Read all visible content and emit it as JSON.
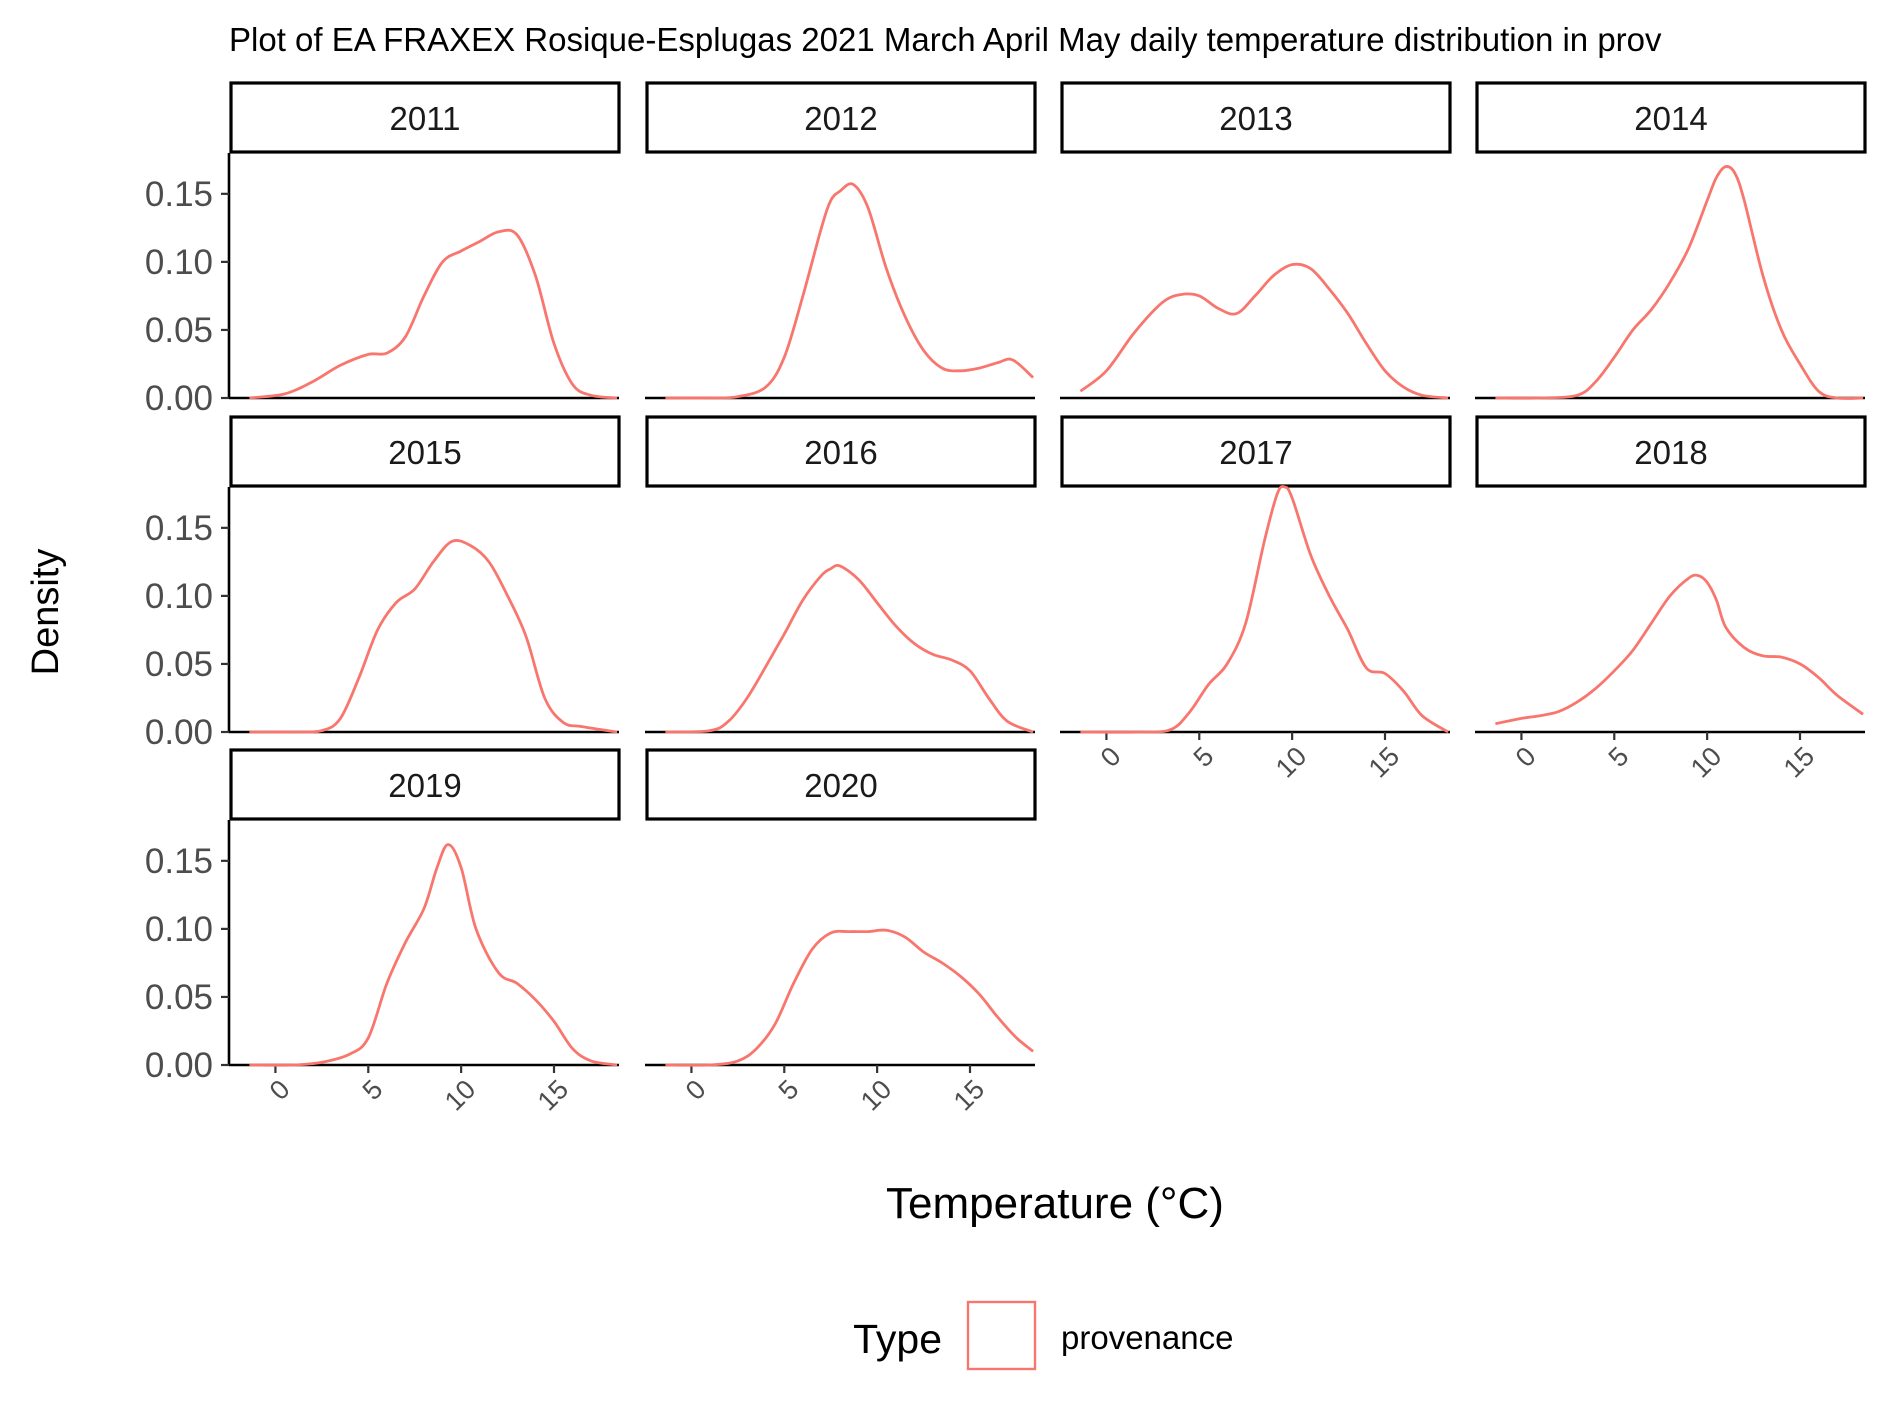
{
  "chart_data": {
    "type": "line",
    "title": "Plot of EA FRAXEX Rosique-Esplugas 2021 March April May daily temperature distribution in prov",
    "xlabel": "Temperature (°C)",
    "ylabel": "Density",
    "xlim": [
      -2.5,
      18.5
    ],
    "ylim": [
      0,
      0.18
    ],
    "x_ticks": [
      0,
      5,
      10,
      15
    ],
    "y_ticks": [
      0.0,
      0.05,
      0.1,
      0.15
    ],
    "y_tick_labels": [
      "0.00",
      "0.05",
      "0.10",
      "0.15"
    ],
    "line_color": "#F8766D",
    "legend": {
      "title": "Type",
      "entries": [
        "provenance"
      ],
      "position": "bottom"
    },
    "panels": [
      {
        "label": "2011",
        "x": [
          -1.4,
          0.5,
          2,
          3.5,
          5,
          6,
          7,
          8,
          9,
          10,
          11,
          12,
          13,
          14,
          15,
          16,
          17,
          18.4
        ],
        "y": [
          0.0,
          0.003,
          0.012,
          0.024,
          0.032,
          0.033,
          0.045,
          0.075,
          0.1,
          0.108,
          0.115,
          0.122,
          0.12,
          0.09,
          0.04,
          0.01,
          0.002,
          0.0
        ]
      },
      {
        "label": "2012",
        "x": [
          -1.4,
          1,
          2.5,
          4,
          5,
          6,
          7,
          7.5,
          8,
          8.7,
          9.5,
          10.5,
          11.5,
          12.5,
          13.5,
          14.5,
          15.5,
          16.5,
          17.3,
          18.4
        ],
        "y": [
          0.0,
          0.0,
          0.001,
          0.008,
          0.03,
          0.075,
          0.125,
          0.145,
          0.152,
          0.157,
          0.14,
          0.095,
          0.06,
          0.035,
          0.022,
          0.02,
          0.022,
          0.026,
          0.028,
          0.015
        ]
      },
      {
        "label": "2013",
        "x": [
          -1.4,
          0,
          1.5,
          3,
          4,
          5,
          6,
          7,
          8,
          9,
          10,
          11,
          12,
          13,
          14,
          15,
          16,
          17,
          18.4
        ],
        "y": [
          0.005,
          0.02,
          0.048,
          0.07,
          0.076,
          0.075,
          0.066,
          0.062,
          0.075,
          0.09,
          0.098,
          0.095,
          0.08,
          0.062,
          0.04,
          0.02,
          0.008,
          0.002,
          0.0
        ]
      },
      {
        "label": "2014",
        "x": [
          -1.4,
          1,
          3,
          4,
          5,
          6,
          7,
          8,
          9,
          10,
          10.5,
          11,
          11.5,
          12,
          13,
          14,
          15,
          16,
          17,
          18.4
        ],
        "y": [
          0.0,
          0.0,
          0.002,
          0.012,
          0.03,
          0.05,
          0.065,
          0.085,
          0.11,
          0.145,
          0.162,
          0.17,
          0.165,
          0.145,
          0.09,
          0.05,
          0.025,
          0.005,
          0.0,
          0.0
        ]
      },
      {
        "label": "2015",
        "x": [
          -1.4,
          1,
          2.5,
          3.5,
          4.5,
          5.5,
          6.5,
          7.5,
          8.5,
          9.5,
          10.5,
          11.5,
          12.5,
          13.5,
          14.5,
          15.5,
          16.5,
          18.4
        ],
        "y": [
          0.0,
          0.0,
          0.001,
          0.01,
          0.04,
          0.075,
          0.095,
          0.105,
          0.125,
          0.14,
          0.137,
          0.125,
          0.1,
          0.07,
          0.025,
          0.007,
          0.004,
          0.0
        ]
      },
      {
        "label": "2016",
        "x": [
          -1.4,
          1,
          2,
          3,
          4,
          5,
          6,
          7,
          7.5,
          8,
          9,
          10,
          11,
          12,
          13,
          14,
          15,
          16,
          17,
          18.4
        ],
        "y": [
          0.0,
          0.001,
          0.008,
          0.025,
          0.048,
          0.072,
          0.097,
          0.115,
          0.12,
          0.122,
          0.112,
          0.095,
          0.078,
          0.065,
          0.057,
          0.053,
          0.045,
          0.025,
          0.008,
          0.0
        ]
      },
      {
        "label": "2017",
        "x": [
          -1.4,
          2,
          3.5,
          4.5,
          5.5,
          6.5,
          7.5,
          8.5,
          9.2,
          9.6,
          10,
          11,
          12,
          13,
          14,
          15,
          16,
          17,
          18.4
        ],
        "y": [
          0.0,
          0.0,
          0.002,
          0.015,
          0.035,
          0.05,
          0.08,
          0.14,
          0.175,
          0.18,
          0.172,
          0.13,
          0.1,
          0.075,
          0.047,
          0.043,
          0.03,
          0.012,
          0.0
        ]
      },
      {
        "label": "2018",
        "x": [
          -1.4,
          0,
          1,
          2,
          3,
          4,
          5,
          6,
          7,
          8,
          9,
          9.5,
          10,
          10.5,
          11,
          12,
          13,
          14,
          15,
          16,
          17,
          18.4
        ],
        "y": [
          0.006,
          0.01,
          0.012,
          0.015,
          0.022,
          0.032,
          0.045,
          0.06,
          0.08,
          0.1,
          0.113,
          0.115,
          0.11,
          0.097,
          0.077,
          0.062,
          0.056,
          0.055,
          0.05,
          0.04,
          0.027,
          0.013
        ]
      },
      {
        "label": "2019",
        "x": [
          -1.4,
          1,
          2.5,
          4,
          5,
          6,
          7,
          8,
          8.7,
          9.3,
          10,
          10.8,
          12,
          13,
          14,
          15,
          16,
          17,
          18.4
        ],
        "y": [
          0.0,
          0.0,
          0.002,
          0.008,
          0.02,
          0.06,
          0.09,
          0.115,
          0.145,
          0.162,
          0.145,
          0.1,
          0.068,
          0.06,
          0.048,
          0.032,
          0.012,
          0.003,
          0.0
        ]
      },
      {
        "label": "2020",
        "x": [
          -1.4,
          1,
          2.5,
          3.5,
          4.5,
          5.5,
          6.5,
          7.5,
          8.5,
          9.5,
          10.5,
          11.5,
          12.5,
          13.5,
          14.5,
          15.5,
          16.5,
          17.5,
          18.4
        ],
        "y": [
          0.0,
          0.0,
          0.003,
          0.012,
          0.03,
          0.06,
          0.085,
          0.097,
          0.098,
          0.098,
          0.099,
          0.094,
          0.083,
          0.075,
          0.065,
          0.052,
          0.035,
          0.02,
          0.01
        ]
      }
    ]
  }
}
